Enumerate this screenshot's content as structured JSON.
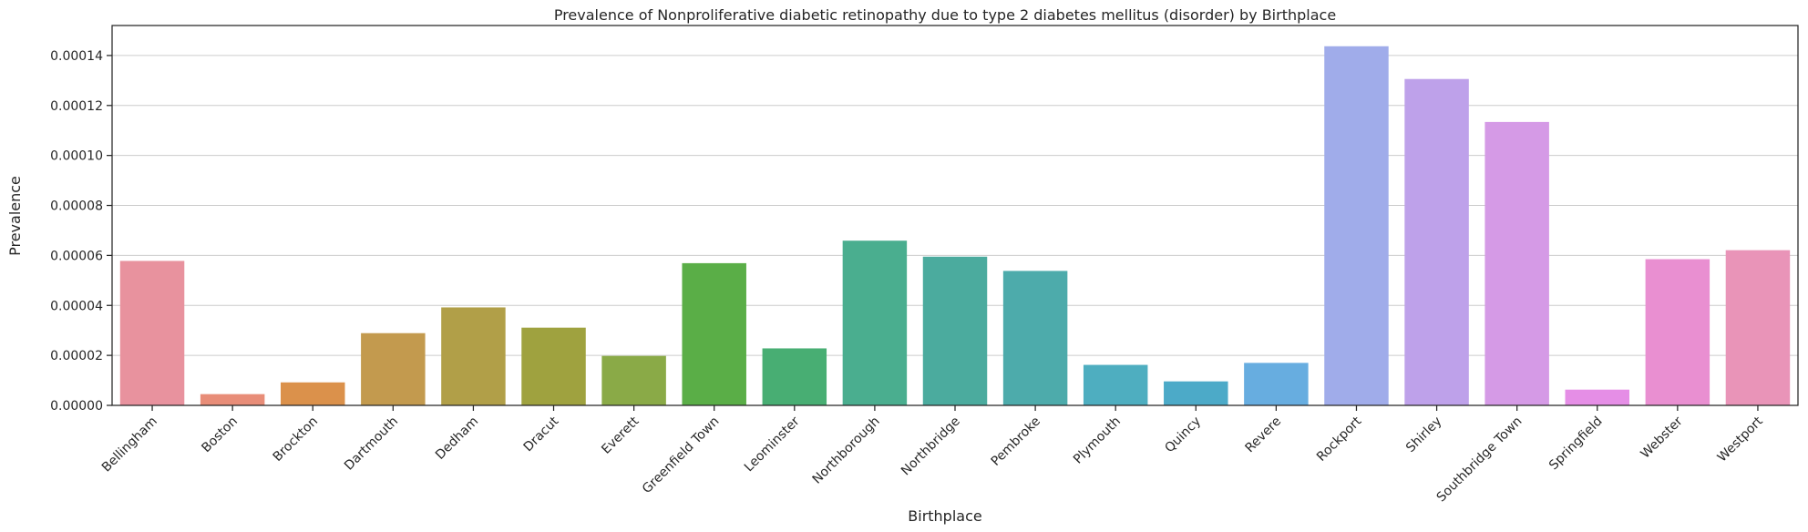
{
  "chart_data": {
    "type": "bar",
    "title": "Prevalence of Nonproliferative diabetic retinopathy due to type 2 diabetes mellitus (disorder) by Birthplace",
    "xlabel": "Birthplace",
    "ylabel": "Prevalence",
    "ylim": [
      0,
      0.000152
    ],
    "yticks": [
      "0.00000",
      "0.00002",
      "0.00004",
      "0.00006",
      "0.00008",
      "0.00010",
      "0.00012",
      "0.00014"
    ],
    "grid": "horizontal",
    "categories": [
      "Bellingham",
      "Boston",
      "Brockton",
      "Dartmouth",
      "Dedham",
      "Dracut",
      "Everett",
      "Greenfield Town",
      "Leominster",
      "Northborough",
      "Northbridge",
      "Pembroke",
      "Plymouth",
      "Quincy",
      "Revere",
      "Rockport",
      "Shirley",
      "Southbridge Town",
      "Springfield",
      "Webster",
      "Westport"
    ],
    "values": [
      5.78e-05,
      4.5e-06,
      9.2e-06,
      2.89e-05,
      3.92e-05,
      3.11e-05,
      1.98e-05,
      5.69e-05,
      2.28e-05,
      6.59e-05,
      5.95e-05,
      5.38e-05,
      1.62e-05,
      9.6e-06,
      1.7e-05,
      0.0001437,
      0.0001306,
      0.0001134,
      6.3e-06,
      5.85e-05,
      6.21e-05
    ],
    "colors": [
      "#e8929e",
      "#e88d78",
      "#db914b",
      "#c39a4e",
      "#b19f48",
      "#9fa23f",
      "#8aaa47",
      "#5aae47",
      "#48ae73",
      "#4aae8f",
      "#4bab9e",
      "#4dab ab",
      "#4eaec0",
      "#4caac8",
      "#67ade0",
      "#a0acea",
      "#bea1ea",
      "#d59ae6",
      "#e58ee6",
      "#e98fd1",
      "#e994b8"
    ]
  }
}
